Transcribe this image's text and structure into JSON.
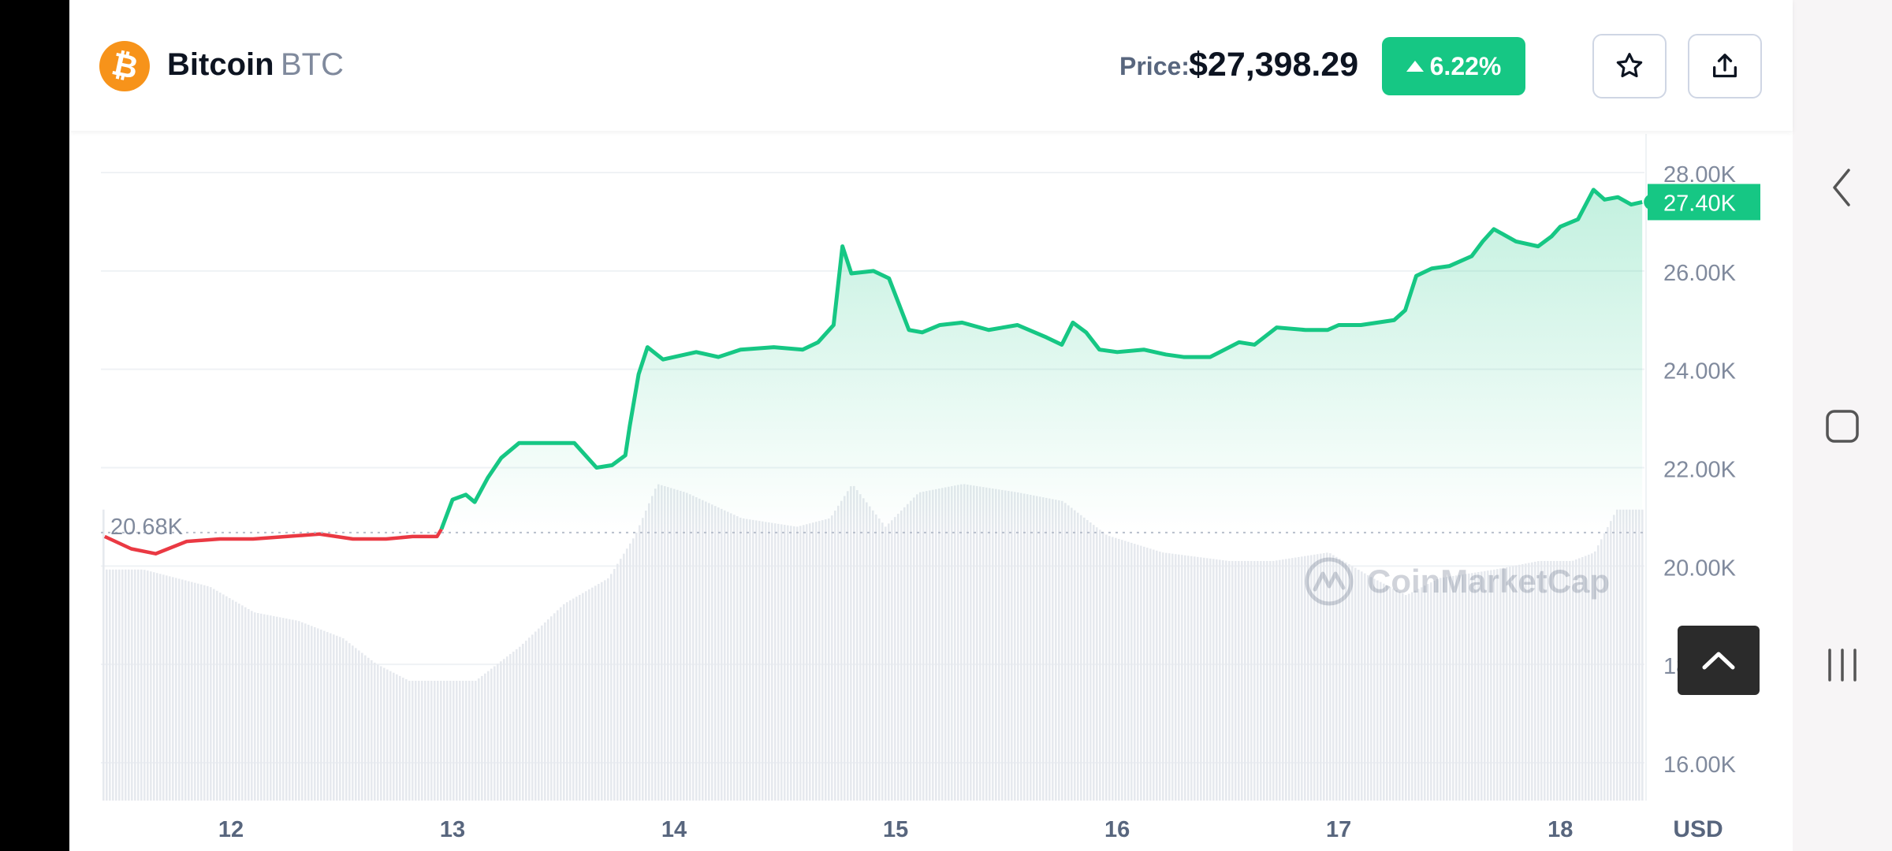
{
  "header": {
    "coin_logo_symbol": "₿",
    "coin_name": "Bitcoin",
    "coin_symbol": "BTC",
    "price_label": "Price:",
    "price_value": "$27,398.29",
    "change_percent": "6.22%",
    "change_direction": "up",
    "icons": {
      "star": "star-icon",
      "share": "share-icon"
    }
  },
  "colors": {
    "up": "#16c784",
    "down": "#ea3943",
    "brand_btc": "#F7931A",
    "text_primary": "#0d1421",
    "text_secondary": "#808a9d"
  },
  "watermark": "CoinMarketCap",
  "nav": {
    "icons": [
      "back-icon",
      "home-icon",
      "recents-icon"
    ]
  },
  "chart_data": {
    "type": "line",
    "title": "",
    "currency": "USD",
    "y_axis_ticks": [
      "28.00K",
      "26.00K",
      "24.00K",
      "22.00K",
      "20.00K",
      "18.00K",
      "16.00K"
    ],
    "y_tick_values": [
      28000,
      26000,
      24000,
      22000,
      20000,
      18000,
      16000
    ],
    "x_axis_ticks": [
      "12",
      "13",
      "14",
      "15",
      "16",
      "17",
      "18"
    ],
    "x_tick_values": [
      12,
      13,
      14,
      15,
      16,
      17,
      18
    ],
    "x_range": [
      11.42,
      18.38
    ],
    "ylim": [
      15800,
      28200
    ],
    "baseline_value": 20680,
    "baseline_label": "20.68K",
    "current_value": 27400,
    "current_label": "27.40K",
    "series": [
      {
        "x": [
          11.43,
          11.55,
          11.66,
          11.8,
          11.95,
          12.1,
          12.25,
          12.4,
          12.55,
          12.7,
          12.82,
          12.93,
          12.95,
          13.0,
          13.06,
          13.1,
          13.16,
          13.22,
          13.3,
          13.42,
          13.55,
          13.6,
          13.65,
          13.72,
          13.78,
          13.8,
          13.84,
          13.88,
          13.95,
          14.1,
          14.2,
          14.3,
          14.45,
          14.58,
          14.65,
          14.72,
          14.76,
          14.8,
          14.9,
          14.97,
          15.0,
          15.06,
          15.12,
          15.2,
          15.3,
          15.42,
          15.55,
          15.68,
          15.75,
          15.8,
          15.86,
          15.92,
          16.0,
          16.12,
          16.22,
          16.3,
          16.42,
          16.55,
          16.62,
          16.72,
          16.85,
          16.95,
          17.0,
          17.1,
          17.25,
          17.3,
          17.35,
          17.42,
          17.5,
          17.6,
          17.65,
          17.7,
          17.8,
          17.9,
          17.96,
          18.0,
          18.08,
          18.15,
          18.2,
          18.26,
          18.32,
          18.37
        ],
        "y": [
          20600,
          20350,
          20250,
          20500,
          20550,
          20550,
          20600,
          20650,
          20550,
          20550,
          20600,
          20600,
          20750,
          21350,
          21450,
          21300,
          21800,
          22200,
          22500,
          22500,
          22500,
          22250,
          22000,
          22050,
          22250,
          22850,
          23900,
          24450,
          24200,
          24350,
          24250,
          24400,
          24450,
          24400,
          24550,
          24900,
          26500,
          25950,
          26000,
          25850,
          25500,
          24800,
          24750,
          24900,
          24950,
          24800,
          24900,
          24650,
          24500,
          24950,
          24750,
          24400,
          24350,
          24400,
          24300,
          24250,
          24250,
          24550,
          24500,
          24850,
          24800,
          24800,
          24900,
          24900,
          25000,
          25200,
          25900,
          26050,
          26100,
          26300,
          26600,
          26850,
          26600,
          26500,
          26700,
          26900,
          27050,
          27650,
          27450,
          27500,
          27350,
          27400
        ]
      }
    ],
    "volume": {
      "x": [
        11.43,
        11.6,
        11.75,
        11.9,
        12.1,
        12.3,
        12.5,
        12.65,
        12.8,
        12.95,
        13.1,
        13.3,
        13.5,
        13.7,
        13.82,
        13.92,
        14.05,
        14.3,
        14.55,
        14.7,
        14.8,
        14.95,
        15.1,
        15.3,
        15.55,
        15.75,
        15.95,
        16.2,
        16.5,
        16.7,
        16.95,
        17.15,
        17.3,
        17.45,
        17.7,
        17.9,
        18.05,
        18.15,
        18.25,
        18.37
      ],
      "level": [
        0.27,
        0.27,
        0.26,
        0.25,
        0.22,
        0.21,
        0.19,
        0.16,
        0.14,
        0.14,
        0.14,
        0.18,
        0.23,
        0.26,
        0.31,
        0.37,
        0.36,
        0.33,
        0.32,
        0.33,
        0.37,
        0.32,
        0.36,
        0.37,
        0.36,
        0.35,
        0.31,
        0.29,
        0.28,
        0.28,
        0.29,
        0.26,
        0.24,
        0.26,
        0.27,
        0.28,
        0.28,
        0.29,
        0.34,
        0.34
      ]
    }
  }
}
